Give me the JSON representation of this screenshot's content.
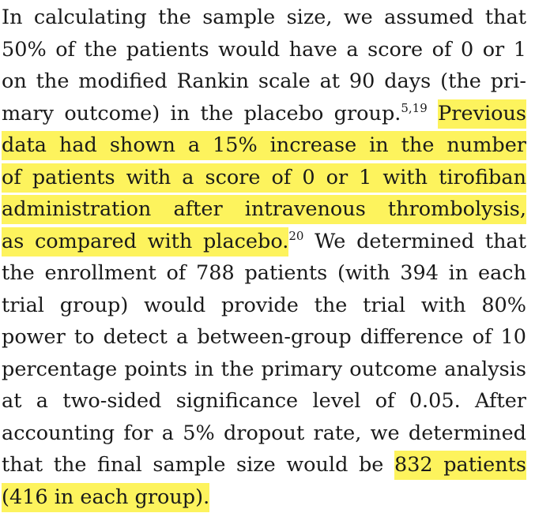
{
  "paragraph": {
    "lines": [
      {
        "segments": [
          {
            "text": "In calculating the sample size, we assumed that"
          }
        ]
      },
      {
        "segments": [
          {
            "text": "50% of the patients would have a score of 0 or 1"
          }
        ]
      },
      {
        "segments": [
          {
            "text": "on the modified Rankin scale at 90 days (the pri-"
          }
        ]
      },
      {
        "segments": [
          {
            "text": "mary outcome) in the placebo group."
          },
          {
            "sup": "5,19"
          },
          {
            "text": " "
          },
          {
            "highlight": "Previous"
          }
        ]
      },
      {
        "segments": [
          {
            "highlight": "data had shown a 15% increase in the number"
          }
        ]
      },
      {
        "segments": [
          {
            "highlight": "of patients with a score of 0 or 1 with tirofiban"
          }
        ]
      },
      {
        "segments": [
          {
            "highlight": "administration after intravenous thrombolysis,"
          }
        ]
      },
      {
        "segments": [
          {
            "highlight": "as compared with placebo."
          },
          {
            "sup": "20"
          },
          {
            "text": " We determined that"
          }
        ]
      },
      {
        "segments": [
          {
            "text": "the enrollment of 788 patients (with 394 in each"
          }
        ]
      },
      {
        "segments": [
          {
            "text": "trial group) would provide the trial with 80%"
          }
        ]
      },
      {
        "segments": [
          {
            "text": "power to detect a between-group difference of 10"
          }
        ]
      },
      {
        "segments": [
          {
            "text": "percentage points in the primary outcome analysis"
          }
        ]
      },
      {
        "segments": [
          {
            "text": "at a two-sided significance level of 0.05. After"
          }
        ]
      },
      {
        "segments": [
          {
            "text": "accounting for a 5% dropout rate, we determined"
          }
        ]
      },
      {
        "segments": [
          {
            "text": "that the final sample size would be "
          },
          {
            "highlight": "832 patients"
          }
        ]
      },
      {
        "segments": [
          {
            "highlight": "(416 in each group)."
          }
        ]
      }
    ]
  },
  "colors": {
    "highlight": "#fdf35d",
    "text": "#1a1a1a",
    "background": "#ffffff"
  }
}
